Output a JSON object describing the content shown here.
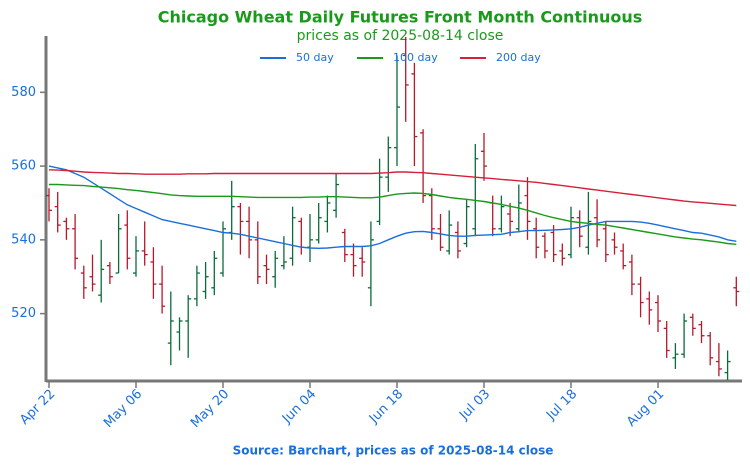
{
  "chart_data": {
    "type": "ohlc",
    "title": "Chicago Wheat Daily Futures Front Month Continuous",
    "subtitle": "prices as of 2025-08-14 close",
    "source": "Source: Barchart, prices as of 2025-08-14 close",
    "categories": [
      "Apr 22",
      null,
      null,
      null,
      null,
      null,
      null,
      null,
      null,
      null,
      "May 06",
      null,
      null,
      null,
      null,
      null,
      null,
      null,
      null,
      null,
      "May 20",
      null,
      null,
      null,
      null,
      null,
      null,
      null,
      null,
      null,
      "Jun 04",
      null,
      null,
      null,
      null,
      null,
      null,
      null,
      null,
      null,
      "Jun 18",
      null,
      null,
      null,
      null,
      null,
      null,
      null,
      null,
      null,
      "Jul 03",
      null,
      null,
      null,
      null,
      null,
      null,
      null,
      null,
      null,
      "Jul 18",
      null,
      null,
      null,
      null,
      null,
      null,
      null,
      null,
      null,
      "Aug 01",
      null,
      null,
      null,
      null,
      null,
      null,
      null,
      null,
      null
    ],
    "ohlc": {
      "open": [
        552,
        549,
        545,
        543,
        531,
        530,
        525,
        533,
        531,
        544,
        531,
        537,
        534,
        528,
        512,
        515,
        518,
        524,
        526,
        527,
        531,
        542,
        549,
        545,
        540,
        533,
        530,
        533,
        535,
        545,
        538,
        540,
        545,
        548,
        542,
        536,
        535,
        527,
        545,
        557,
        565,
        590,
        585,
        569,
        552,
        543,
        537,
        542,
        539,
        543,
        564,
        550,
        543,
        547,
        543,
        552,
        543,
        541,
        542,
        537,
        536,
        546,
        538,
        546,
        543,
        540,
        537,
        534,
        528,
        524,
        523,
        516,
        508,
        509,
        519,
        517,
        514,
        507,
        504,
        527
      ],
      "high": [
        554,
        553,
        546,
        547,
        533,
        536,
        540,
        534,
        547,
        548,
        541,
        545,
        538,
        533,
        526,
        519,
        525,
        533,
        534,
        537,
        545,
        556,
        550,
        549,
        545,
        536,
        537,
        541,
        549,
        546,
        547,
        550,
        552,
        558,
        543,
        539,
        538,
        545,
        562,
        568,
        590,
        595,
        588,
        570,
        554,
        547,
        548,
        545,
        551,
        566,
        569,
        552,
        552,
        550,
        555,
        557,
        546,
        542,
        544,
        539,
        549,
        548,
        553,
        551,
        545,
        542,
        539,
        536,
        530,
        526,
        525,
        518,
        512,
        520,
        520,
        518,
        515,
        512,
        510,
        530
      ],
      "low": [
        545,
        542,
        540,
        532,
        524,
        526,
        523,
        528,
        531,
        532,
        530,
        533,
        524,
        520,
        506,
        510,
        508,
        522,
        524,
        525,
        530,
        540,
        536,
        535,
        528,
        528,
        527,
        532,
        533,
        536,
        534,
        539,
        542,
        546,
        534,
        530,
        530,
        522,
        544,
        553,
        560,
        572,
        560,
        550,
        540,
        537,
        536,
        535,
        538,
        541,
        556,
        541,
        542,
        541,
        542,
        540,
        535,
        535,
        534,
        533,
        535,
        538,
        536,
        538,
        534,
        536,
        532,
        525,
        519,
        517,
        515,
        508,
        505,
        508,
        514,
        512,
        506,
        503,
        502,
        522
      ],
      "close": [
        548,
        544,
        543,
        535,
        527,
        528,
        532,
        530,
        543,
        535,
        537,
        536,
        528,
        522,
        518,
        518,
        524,
        531,
        530,
        535,
        543,
        549,
        545,
        540,
        530,
        532,
        535,
        534,
        546,
        538,
        540,
        546,
        550,
        555,
        536,
        533,
        534,
        540,
        557,
        565,
        576,
        582,
        568,
        552,
        543,
        538,
        544,
        537,
        549,
        562,
        560,
        543,
        549,
        545,
        550,
        545,
        538,
        537,
        536,
        535,
        546,
        541,
        545,
        540,
        536,
        538,
        533,
        528,
        523,
        521,
        518,
        510,
        509,
        518,
        516,
        514,
        508,
        505,
        507,
        526
      ]
    },
    "up_color": "#0b6b3a",
    "down_color": "#b5192b",
    "series": [
      {
        "name": "50 day",
        "color": "#1a6fdc",
        "values": [
          560,
          559.5,
          559,
          558,
          557,
          555.5,
          554,
          552.5,
          551,
          549.5,
          548.5,
          547.5,
          546.5,
          545.5,
          545,
          544.5,
          544,
          543.5,
          543,
          542.5,
          542,
          541.8,
          541.5,
          541,
          540.5,
          540,
          539.5,
          539,
          538.5,
          538,
          537.8,
          537.7,
          537.8,
          538,
          538.2,
          538.2,
          538.2,
          538.4,
          539,
          540,
          541,
          541.8,
          542.2,
          542.3,
          542,
          541.6,
          541.2,
          541,
          541,
          541.2,
          541.3,
          541.4,
          541.5,
          542,
          542.2,
          542.5,
          542.5,
          542.6,
          542.7,
          542.8,
          543,
          543.4,
          544,
          544.5,
          545,
          545,
          545,
          545,
          544.8,
          544.5,
          544,
          543.5,
          543,
          542.5,
          542,
          541.8,
          541.3,
          540.8,
          540,
          539.6
        ]
      },
      {
        "name": "100 day",
        "color": "#1a9a1a",
        "values": [
          555,
          555,
          554.9,
          554.8,
          554.7,
          554.5,
          554.3,
          554.1,
          553.9,
          553.6,
          553.4,
          553.1,
          552.8,
          552.5,
          552.2,
          552,
          551.9,
          551.8,
          551.8,
          551.8,
          551.8,
          551.8,
          551.7,
          551.6,
          551.5,
          551.5,
          551.5,
          551.5,
          551.5,
          551.5,
          551.6,
          551.6,
          551.7,
          551.7,
          551.6,
          551.5,
          551.4,
          551.4,
          551.6,
          552,
          552.4,
          552.6,
          552.7,
          552.6,
          552.3,
          551.9,
          551.5,
          551.2,
          551,
          550.7,
          550.4,
          550,
          549.6,
          549.1,
          548.6,
          548,
          547.3,
          546.6,
          546,
          545.5,
          545,
          544.7,
          544.5,
          544.2,
          544,
          543.6,
          543.2,
          542.8,
          542.4,
          542,
          541.6,
          541.2,
          540.8,
          540.5,
          540.2,
          540,
          539.7,
          539.4,
          539,
          538.8
        ]
      },
      {
        "name": "200 day",
        "color": "#d6203a",
        "values": [
          559,
          558.9,
          558.8,
          558.6,
          558.4,
          558.3,
          558.2,
          558.1,
          558,
          558,
          557.9,
          557.8,
          557.8,
          557.8,
          557.8,
          557.8,
          557.9,
          557.9,
          557.9,
          558,
          558,
          558,
          558,
          558,
          558,
          558,
          558,
          558,
          558,
          558,
          558,
          558,
          558,
          558,
          558,
          558,
          558,
          558,
          558.1,
          558.2,
          558.4,
          558.4,
          558.3,
          558.2,
          558,
          557.8,
          557.6,
          557.4,
          557.2,
          557,
          556.8,
          556.6,
          556.4,
          556.2,
          556,
          555.8,
          555.6,
          555.3,
          555,
          554.7,
          554.4,
          554.1,
          553.8,
          553.5,
          553.2,
          552.9,
          552.6,
          552.3,
          552,
          551.7,
          551.4,
          551.1,
          550.8,
          550.5,
          550.3,
          550.1,
          549.9,
          549.7,
          549.5,
          549.3
        ]
      }
    ],
    "ylim": [
      502,
      595
    ],
    "yticks": [
      520,
      540,
      560,
      580
    ]
  }
}
